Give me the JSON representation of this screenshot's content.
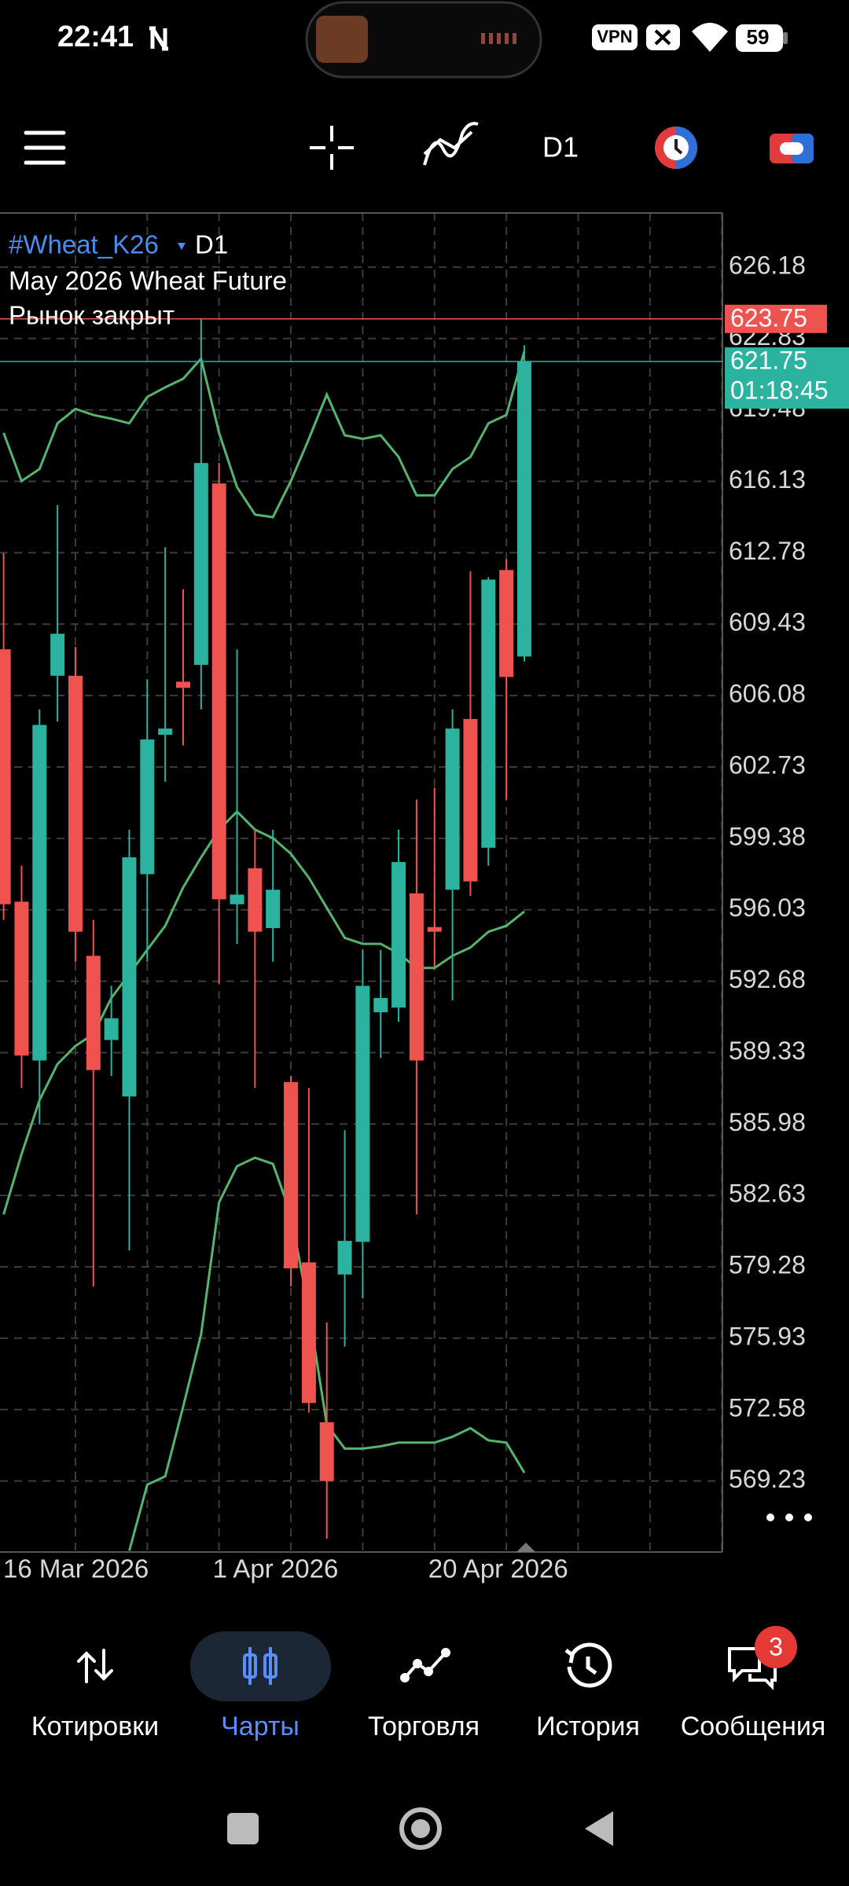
{
  "status_bar": {
    "time": "22:41",
    "vpn": "VPN",
    "battery": 59
  },
  "toolbar": {
    "timeframe": "D1"
  },
  "chart_data": {
    "type": "candlestick",
    "symbol": "#Wheat_K26",
    "timeframe": "D1",
    "description": "May 2026 Wheat Future",
    "status": "Рынок закрыт",
    "categories": [
      "16 Mar 2026",
      null,
      null,
      null,
      null,
      null,
      null,
      null,
      null,
      null,
      null,
      null,
      "1 Apr 2026",
      null,
      null,
      null,
      null,
      null,
      null,
      null,
      null,
      null,
      null,
      null,
      "20 Apr 2026",
      null,
      null,
      null,
      null,
      null
    ],
    "open": [
      608.25,
      596.41,
      588.96,
      607.01,
      607.01,
      593.87,
      589.92,
      587.27,
      597.7,
      604.24,
      606.73,
      607.52,
      616.03,
      596.29,
      597.98,
      595.17,
      587.95,
      579.49,
      571.99,
      578.92,
      580.45,
      591.22,
      591.44,
      596.8,
      595.22,
      596.97,
      604.98,
      598.94,
      611.97,
      607.91
    ],
    "high": [
      612.76,
      598.1,
      605.43,
      615.01,
      608.36,
      595.56,
      592.46,
      599.79,
      606.84,
      613.04,
      611.07,
      623.76,
      616.99,
      608.25,
      599.79,
      599.79,
      588.23,
      587.67,
      576.67,
      585.69,
      594.15,
      594.15,
      599.79,
      601.2,
      601.76,
      605.43,
      611.91,
      611.63,
      612.48,
      622.51
    ],
    "low": [
      595.56,
      587.67,
      585.97,
      604.86,
      593.59,
      578.36,
      588.23,
      580.05,
      593.59,
      602.04,
      603.74,
      605.43,
      592.57,
      594.43,
      587.67,
      593.59,
      578.36,
      572.44,
      566.52,
      575.54,
      577.8,
      589.08,
      590.77,
      581.74,
      593.3,
      591.78,
      596.69,
      598.1,
      601.2,
      607.68
    ],
    "close": [
      596.29,
      589.19,
      604.7,
      608.98,
      595.0,
      588.51,
      590.94,
      598.49,
      604.02,
      604.53,
      606.44,
      616.99,
      596.52,
      596.74,
      595.0,
      596.97,
      579.21,
      572.89,
      569.23,
      580.5,
      592.46,
      591.89,
      598.27,
      588.96,
      595.0,
      604.53,
      597.36,
      611.52,
      606.95,
      621.75
    ],
    "up_color": "#2bb3a0",
    "down_color": "#ef5350",
    "bands": {
      "color": "#55b46e",
      "upper": [
        618.4,
        616.14,
        616.71,
        618.85,
        619.53,
        619.24,
        619.07,
        618.85,
        620.09,
        620.54,
        620.94,
        621.89,
        618.4,
        615.86,
        614.57,
        614.45,
        616.14,
        618.12,
        620.2,
        618.29,
        618.12,
        618.29,
        617.27,
        615.47,
        615.47,
        616.71,
        617.27,
        618.85,
        619.24,
        622.23
      ],
      "middle": [
        581.74,
        584.56,
        587.1,
        588.79,
        589.64,
        590.2,
        591.89,
        593.02,
        594.15,
        595.28,
        597.08,
        598.49,
        599.79,
        600.64,
        599.79,
        599.39,
        598.66,
        597.53,
        596.12,
        594.71,
        594.43,
        594.43,
        593.98,
        593.3,
        593.3,
        593.87,
        594.26,
        595.0,
        595.28,
        595.95
      ],
      "lower": [
        null,
        null,
        null,
        null,
        null,
        null,
        null,
        565.96,
        569.06,
        569.45,
        572.72,
        576.11,
        582.31,
        584.0,
        584.4,
        584.11,
        581.74,
        577.23,
        571.88,
        570.75,
        570.75,
        570.86,
        571.03,
        571.03,
        571.03,
        571.31,
        571.71,
        571.14,
        571.03,
        569.62
      ]
    },
    "ask_line": {
      "value": 623.75,
      "color": "#ef5350"
    },
    "bid_line": {
      "value": 621.75,
      "color": "#2bb3a0",
      "countdown": "01:18:45"
    },
    "ylim": [
      565.9,
      628.72
    ],
    "yticks": [
      626.18,
      622.83,
      619.48,
      616.13,
      612.78,
      609.43,
      606.08,
      602.73,
      599.38,
      596.03,
      592.68,
      589.33,
      585.98,
      582.63,
      579.28,
      575.93,
      572.58,
      569.23
    ],
    "grid": true
  },
  "bottom_nav": {
    "items": [
      "Котировки",
      "Чарты",
      "Торговля",
      "История",
      "Сообщения"
    ],
    "messages_badge": 3
  }
}
